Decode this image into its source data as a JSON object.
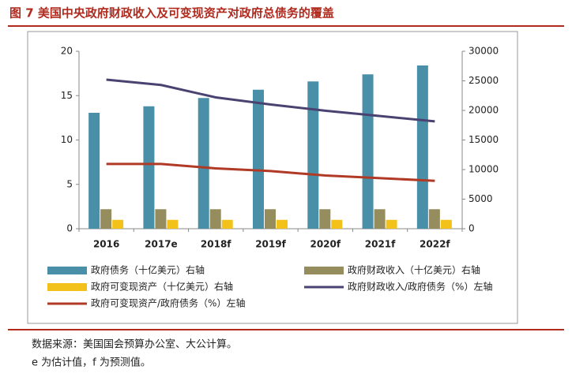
{
  "chart_data": {
    "type": "bar",
    "title": "图 7 美国中央政府财政收入及可变现资产对政府总债务的覆盖",
    "categories": [
      "2016",
      "2017e",
      "2018f",
      "2019f",
      "2020f",
      "2021f",
      "2022f"
    ],
    "series": [
      {
        "name": "政府债务（十亿美元）右轴",
        "type": "bar",
        "axis": "y2",
        "color": "#4a8fa8",
        "values": [
          19600,
          20700,
          22100,
          23500,
          24900,
          26100,
          27600
        ]
      },
      {
        "name": "政府财政收入（十亿美元）右轴",
        "type": "bar",
        "axis": "y2",
        "color": "#958d5e",
        "values": [
          3300,
          3300,
          3300,
          3300,
          3300,
          3300,
          3300
        ]
      },
      {
        "name": "政府可变现资产（十亿美元）右轴",
        "type": "bar",
        "axis": "y2",
        "color": "#f2c21b",
        "values": [
          1500,
          1500,
          1500,
          1500,
          1500,
          1500,
          1500
        ]
      },
      {
        "name": "政府财政收入/政府债务（%）左轴",
        "type": "line",
        "axis": "y",
        "color": "#4a4270",
        "values": [
          16.8,
          16.2,
          14.8,
          14.0,
          13.3,
          12.7,
          12.1
        ]
      },
      {
        "name": "政府可变现资产/政府债务（%）左轴",
        "type": "line",
        "axis": "y",
        "color": "#b03a26",
        "values": [
          7.3,
          7.3,
          6.8,
          6.5,
          6.0,
          5.7,
          5.4
        ]
      }
    ],
    "ylim": [
      0,
      20
    ],
    "yticks": [
      0,
      5,
      10,
      15,
      20
    ],
    "y2lim": [
      0,
      30000
    ],
    "y2ticks": [
      0,
      5000,
      10000,
      15000,
      20000,
      25000,
      30000
    ],
    "grid": false,
    "notes": [
      "数据来源：美国国会预算办公室、大公计算。",
      "e 为估计值，f 为预测值。"
    ]
  }
}
